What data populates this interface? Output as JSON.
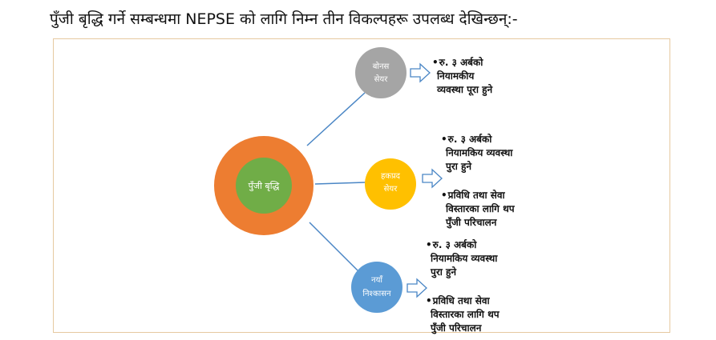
{
  "heading": "पुँजी बृद्धि गर्ने सम्बन्धमा NEPSE को लागि निम्न तीन विकल्पहरू उपलब्ध देखिन्छन्:-",
  "center": {
    "label": "पुँजी बृद्धि",
    "outer_color": "#ed7d31",
    "inner_color": "#70ad47"
  },
  "branches": [
    {
      "line1": "बोनस",
      "line2": "सेयर",
      "color": "#a5a5a5",
      "notes": [
        [
          "रु. ३ अर्बको",
          "नियामकीय",
          "व्यवस्था पूरा हुने"
        ]
      ]
    },
    {
      "line1": "हकप्रद",
      "line2": "सेयर",
      "color": "#ffc000",
      "notes": [
        [
          "रु. ३ अर्बको",
          "नियामकिय व्यवस्था",
          "पुरा हुने"
        ],
        [
          "प्रविधि तथा सेवा",
          "विस्तारका लागि थप",
          "पुँजी परिचालन"
        ]
      ]
    },
    {
      "line1": "नयाँ",
      "line2": "निश्कासन",
      "color": "#5b9bd5",
      "notes": [
        [
          "रु. ३ अर्बको",
          "नियामकिय व्यवस्था",
          "पुरा हुने"
        ],
        [
          "प्रविधि तथा सेवा",
          "विस्तारका लागि थप",
          "पुँजी परिचालन"
        ]
      ]
    }
  ],
  "bullet": "•",
  "connector_color": "#4a86c5",
  "arrow_color": "#4a86c5"
}
